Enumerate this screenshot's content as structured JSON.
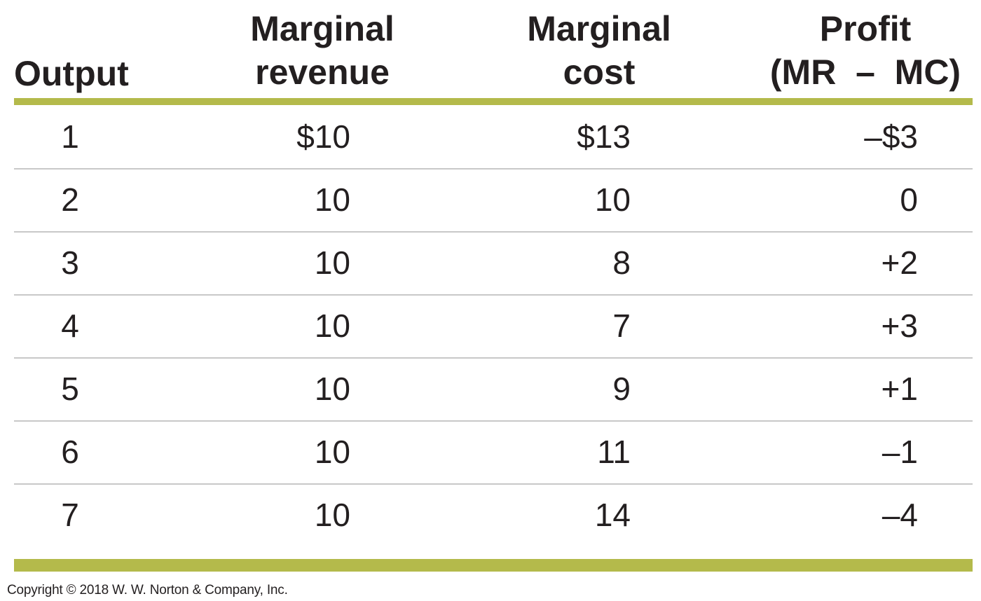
{
  "chart_data": {
    "type": "table",
    "columns": [
      "Output",
      "Marginal revenue",
      "Marginal cost",
      "Profit (MR − MC)"
    ],
    "rows": [
      [
        "1",
        "$10",
        "$13",
        "–$3"
      ],
      [
        "2",
        "10",
        "10",
        "0"
      ],
      [
        "3",
        "10",
        "8",
        "+2"
      ],
      [
        "4",
        "10",
        "7",
        "+3"
      ],
      [
        "5",
        "10",
        "9",
        "+1"
      ],
      [
        "6",
        "10",
        "11",
        "–1"
      ],
      [
        "7",
        "10",
        "14",
        "–4"
      ]
    ]
  },
  "header": {
    "output": "Output",
    "mr_line1": "Marginal",
    "mr_line2": "revenue",
    "mc_line1": "Marginal",
    "mc_line2": "cost",
    "profit_line1": "Profit",
    "profit_line2": "(MR  –  MC)"
  },
  "colors": {
    "rule": "#b4ba4b",
    "separator": "#c8c8c8",
    "text": "#231f20"
  },
  "copyright": "Copyright © 2018 W. W. Norton & Company, Inc."
}
